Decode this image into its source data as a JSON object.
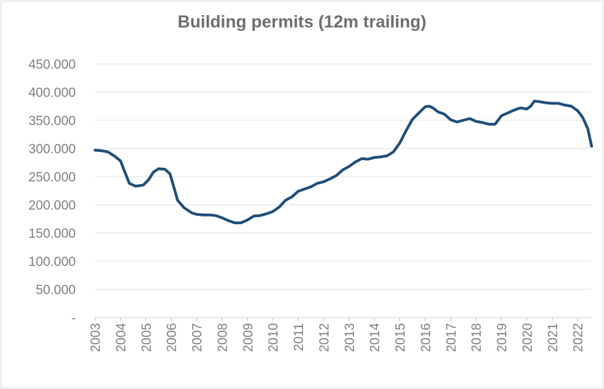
{
  "chart_data": {
    "type": "line",
    "title": "Building permits (12m trailing)",
    "xlabel": "",
    "ylabel": "",
    "ylim": [
      0,
      450000
    ],
    "y_ticks": [
      {
        "value": 0,
        "label": "-"
      },
      {
        "value": 50000,
        "label": "50.000"
      },
      {
        "value": 100000,
        "label": "100.000"
      },
      {
        "value": 150000,
        "label": "150.000"
      },
      {
        "value": 200000,
        "label": "200.000"
      },
      {
        "value": 250000,
        "label": "250.000"
      },
      {
        "value": 300000,
        "label": "300.000"
      },
      {
        "value": 350000,
        "label": "350.000"
      },
      {
        "value": 400000,
        "label": "400.000"
      },
      {
        "value": 450000,
        "label": "450.000"
      }
    ],
    "x_ticks": [
      "2003",
      "2004",
      "2005",
      "2006",
      "2007",
      "2008",
      "2009",
      "2010",
      "2011",
      "2012",
      "2013",
      "2014",
      "2015",
      "2016",
      "2017",
      "2018",
      "2019",
      "2020",
      "2021",
      "2022"
    ],
    "xlim": [
      2003.0,
      2022.55
    ],
    "grid": true,
    "legend": "none",
    "line_color": "#1f4e79",
    "series": [
      {
        "x": [
          2003.0,
          2003.25,
          2003.5,
          2003.75,
          2004.0,
          2004.2,
          2004.35,
          2004.6,
          2004.9,
          2005.1,
          2005.3,
          2005.5,
          2005.75,
          2005.95,
          2006.1,
          2006.25,
          2006.5,
          2006.8,
          2007.0,
          2007.25,
          2007.5,
          2007.75,
          2008.0,
          2008.25,
          2008.5,
          2008.75,
          2009.0,
          2009.25,
          2009.5,
          2009.75,
          2010.0,
          2010.25,
          2010.5,
          2010.75,
          2011.0,
          2011.25,
          2011.5,
          2011.75,
          2012.0,
          2012.25,
          2012.5,
          2012.75,
          2013.0,
          2013.25,
          2013.5,
          2013.75,
          2014.0,
          2014.25,
          2014.5,
          2014.75,
          2015.0,
          2015.25,
          2015.5,
          2015.75,
          2016.0,
          2016.15,
          2016.3,
          2016.5,
          2016.75,
          2017.0,
          2017.25,
          2017.5,
          2017.75,
          2018.0,
          2018.25,
          2018.5,
          2018.75,
          2019.0,
          2019.25,
          2019.5,
          2019.75,
          2020.0,
          2020.15,
          2020.3,
          2020.5,
          2020.75,
          2021.0,
          2021.25,
          2021.5,
          2021.75,
          2022.0,
          2022.2,
          2022.4,
          2022.55
        ],
        "y": [
          297000,
          296000,
          294000,
          287000,
          278000,
          255000,
          238000,
          233000,
          235000,
          244000,
          258000,
          264000,
          263000,
          255000,
          232000,
          208000,
          195000,
          186000,
          183000,
          182000,
          182000,
          181000,
          177000,
          172000,
          168000,
          168000,
          173000,
          180000,
          181000,
          184000,
          188000,
          196000,
          208000,
          214000,
          224000,
          228000,
          232000,
          238000,
          241000,
          246000,
          252000,
          262000,
          268000,
          276000,
          282000,
          281000,
          284000,
          285000,
          287000,
          294000,
          310000,
          332000,
          352000,
          363000,
          374000,
          375000,
          372000,
          365000,
          361000,
          351000,
          347000,
          350000,
          353000,
          348000,
          346000,
          343000,
          343000,
          358000,
          363000,
          368000,
          372000,
          370000,
          375000,
          384000,
          383000,
          381000,
          380000,
          380000,
          377000,
          375000,
          367000,
          355000,
          335000,
          304000
        ]
      }
    ]
  }
}
